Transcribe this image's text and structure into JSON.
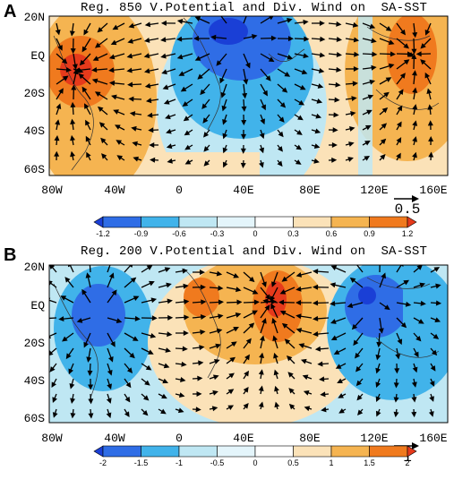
{
  "panels": [
    {
      "id": "A",
      "letter": "A",
      "title": "Reg. 850 V.Potential and Div. Wind on  SA-SST",
      "lat_labels": [
        "20N",
        "EQ",
        "20S",
        "40S",
        "60S"
      ],
      "lon_labels": [
        "80W",
        "40W",
        "0",
        "40E",
        "80E",
        "120E",
        "160E"
      ],
      "ref_vector": "0.5",
      "colorbar": {
        "labels": [
          "-1.2",
          "-0.9",
          "-0.6",
          "-0.3",
          "0",
          "0.3",
          "0.6",
          "0.9",
          "1.2"
        ],
        "colors": [
          "#1a3fd6",
          "#2f6de6",
          "#41b3ea",
          "#bfe7f3",
          "#ffffff",
          "#fbe2b8",
          "#f5b451",
          "#f07a1e",
          "#e63a1b"
        ]
      }
    },
    {
      "id": "B",
      "letter": "B",
      "title": "Reg. 200 V.Potential and Div. Wind on  SA-SST",
      "lat_labels": [
        "20N",
        "EQ",
        "20S",
        "40S",
        "60S"
      ],
      "lon_labels": [
        "80W",
        "40W",
        "0",
        "40E",
        "80E",
        "120E",
        "160E"
      ],
      "ref_vector": "1",
      "colorbar": {
        "labels": [
          "-2",
          "-1.5",
          "-1",
          "-0.5",
          "0",
          "0.5",
          "1",
          "1.5",
          "2"
        ],
        "colors": [
          "#1a3fd6",
          "#2f6de6",
          "#41b3ea",
          "#bfe7f3",
          "#ffffff",
          "#fbe2b8",
          "#f5b451",
          "#f07a1e",
          "#e63a1b"
        ]
      }
    }
  ]
}
